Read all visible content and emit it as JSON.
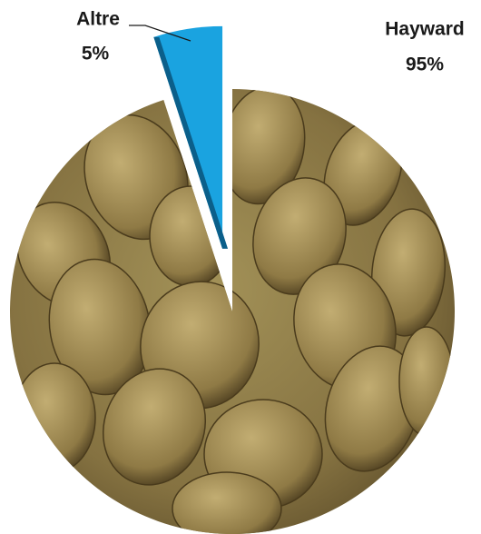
{
  "chart_data": {
    "type": "pie",
    "categories": [
      "Hayward",
      "Altre"
    ],
    "values": [
      95,
      5
    ],
    "value_labels": [
      "95%",
      "5%"
    ],
    "colors": [
      "#8c7b48",
      "#1aa3e0"
    ]
  }
}
